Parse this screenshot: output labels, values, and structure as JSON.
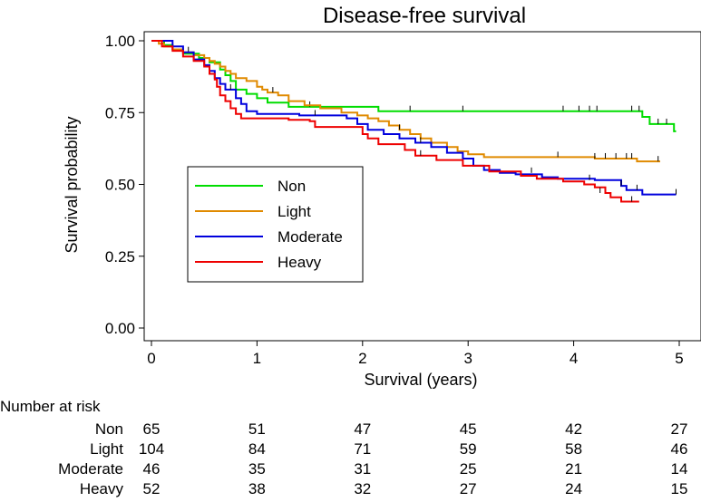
{
  "chart_data": {
    "type": "line",
    "step": true,
    "title": "Disease-free survival",
    "xlabel": "Survival (years)",
    "ylabel": "Survival probability",
    "xlim": [
      0,
      5
    ],
    "ylim": [
      0,
      1
    ],
    "x_ticks": [
      "0",
      "1",
      "2",
      "3",
      "4",
      "5"
    ],
    "y_ticks": [
      "0.00",
      "0.25",
      "0.50",
      "0.75",
      "1.00"
    ],
    "grid": false,
    "legend_placement": "center-left",
    "series": [
      {
        "name": "Non",
        "color": "#00dd00",
        "points": [
          [
            0,
            1
          ],
          [
            0.12,
            0.985
          ],
          [
            0.2,
            0.97
          ],
          [
            0.3,
            0.955
          ],
          [
            0.45,
            0.94
          ],
          [
            0.55,
            0.925
          ],
          [
            0.65,
            0.9
          ],
          [
            0.7,
            0.88
          ],
          [
            0.75,
            0.86
          ],
          [
            0.8,
            0.83
          ],
          [
            0.9,
            0.815
          ],
          [
            1.0,
            0.8
          ],
          [
            1.1,
            0.785
          ],
          [
            1.3,
            0.77
          ],
          [
            2.15,
            0.755
          ],
          [
            4.65,
            0.735
          ],
          [
            4.72,
            0.71
          ],
          [
            4.95,
            0.685
          ],
          [
            4.97,
            0.685
          ]
        ],
        "censored": [
          [
            1.5,
            0.77
          ],
          [
            2.45,
            0.755
          ],
          [
            2.95,
            0.755
          ],
          [
            3.9,
            0.755
          ],
          [
            4.05,
            0.755
          ],
          [
            4.15,
            0.755
          ],
          [
            4.22,
            0.755
          ],
          [
            4.55,
            0.755
          ],
          [
            4.62,
            0.755
          ],
          [
            4.8,
            0.71
          ],
          [
            4.88,
            0.71
          ]
        ]
      },
      {
        "name": "Light",
        "color": "#e08a00",
        "points": [
          [
            0,
            1
          ],
          [
            0.07,
            0.99
          ],
          [
            0.12,
            0.98
          ],
          [
            0.2,
            0.97
          ],
          [
            0.3,
            0.96
          ],
          [
            0.4,
            0.95
          ],
          [
            0.5,
            0.94
          ],
          [
            0.55,
            0.93
          ],
          [
            0.6,
            0.92
          ],
          [
            0.65,
            0.91
          ],
          [
            0.7,
            0.895
          ],
          [
            0.75,
            0.885
          ],
          [
            0.8,
            0.87
          ],
          [
            0.9,
            0.86
          ],
          [
            1.0,
            0.84
          ],
          [
            1.05,
            0.83
          ],
          [
            1.1,
            0.82
          ],
          [
            1.2,
            0.81
          ],
          [
            1.3,
            0.79
          ],
          [
            1.45,
            0.775
          ],
          [
            1.6,
            0.765
          ],
          [
            1.8,
            0.75
          ],
          [
            1.95,
            0.74
          ],
          [
            2.05,
            0.73
          ],
          [
            2.15,
            0.72
          ],
          [
            2.25,
            0.705
          ],
          [
            2.35,
            0.69
          ],
          [
            2.45,
            0.675
          ],
          [
            2.55,
            0.66
          ],
          [
            2.65,
            0.645
          ],
          [
            2.8,
            0.63
          ],
          [
            2.9,
            0.615
          ],
          [
            3.0,
            0.605
          ],
          [
            3.15,
            0.595
          ],
          [
            4.2,
            0.59
          ],
          [
            4.6,
            0.58
          ],
          [
            4.82,
            0.58
          ]
        ],
        "censored": [
          [
            0.35,
            0.96
          ],
          [
            1.15,
            0.82
          ],
          [
            2.35,
            0.69
          ],
          [
            3.85,
            0.595
          ],
          [
            4.2,
            0.59
          ],
          [
            4.3,
            0.59
          ],
          [
            4.4,
            0.59
          ],
          [
            4.5,
            0.59
          ],
          [
            4.55,
            0.59
          ],
          [
            4.8,
            0.58
          ]
        ]
      },
      {
        "name": "Moderate",
        "color": "#0000dd",
        "points": [
          [
            0,
            1
          ],
          [
            0.2,
            0.98
          ],
          [
            0.3,
            0.96
          ],
          [
            0.4,
            0.935
          ],
          [
            0.5,
            0.915
          ],
          [
            0.55,
            0.895
          ],
          [
            0.6,
            0.87
          ],
          [
            0.65,
            0.85
          ],
          [
            0.7,
            0.83
          ],
          [
            0.8,
            0.8
          ],
          [
            0.85,
            0.78
          ],
          [
            0.9,
            0.755
          ],
          [
            1.0,
            0.745
          ],
          [
            1.4,
            0.74
          ],
          [
            1.85,
            0.73
          ],
          [
            1.95,
            0.71
          ],
          [
            2.05,
            0.69
          ],
          [
            2.2,
            0.675
          ],
          [
            2.35,
            0.66
          ],
          [
            2.5,
            0.645
          ],
          [
            2.65,
            0.63
          ],
          [
            2.8,
            0.61
          ],
          [
            2.95,
            0.59
          ],
          [
            3.05,
            0.565
          ],
          [
            3.15,
            0.55
          ],
          [
            3.3,
            0.54
          ],
          [
            3.45,
            0.535
          ],
          [
            3.7,
            0.525
          ],
          [
            3.85,
            0.52
          ],
          [
            4.2,
            0.515
          ],
          [
            4.45,
            0.495
          ],
          [
            4.5,
            0.48
          ],
          [
            4.65,
            0.465
          ],
          [
            4.97,
            0.465
          ]
        ],
        "censored": [
          [
            0.75,
            0.83
          ],
          [
            1.55,
            0.74
          ],
          [
            2.55,
            0.645
          ],
          [
            3.6,
            0.54
          ],
          [
            4.15,
            0.515
          ],
          [
            4.45,
            0.495
          ],
          [
            4.6,
            0.48
          ],
          [
            4.97,
            0.465
          ]
        ]
      },
      {
        "name": "Heavy",
        "color": "#ee0000",
        "points": [
          [
            0,
            1
          ],
          [
            0.1,
            0.98
          ],
          [
            0.2,
            0.965
          ],
          [
            0.3,
            0.945
          ],
          [
            0.4,
            0.93
          ],
          [
            0.5,
            0.91
          ],
          [
            0.55,
            0.885
          ],
          [
            0.6,
            0.865
          ],
          [
            0.62,
            0.84
          ],
          [
            0.65,
            0.81
          ],
          [
            0.7,
            0.79
          ],
          [
            0.75,
            0.765
          ],
          [
            0.8,
            0.745
          ],
          [
            0.85,
            0.73
          ],
          [
            1.3,
            0.725
          ],
          [
            1.5,
            0.72
          ],
          [
            1.55,
            0.7
          ],
          [
            2.0,
            0.675
          ],
          [
            2.05,
            0.66
          ],
          [
            2.15,
            0.64
          ],
          [
            2.4,
            0.62
          ],
          [
            2.5,
            0.6
          ],
          [
            2.7,
            0.585
          ],
          [
            2.95,
            0.565
          ],
          [
            3.2,
            0.545
          ],
          [
            3.5,
            0.53
          ],
          [
            3.65,
            0.52
          ],
          [
            3.9,
            0.51
          ],
          [
            4.1,
            0.5
          ],
          [
            4.2,
            0.49
          ],
          [
            4.3,
            0.47
          ],
          [
            4.35,
            0.455
          ],
          [
            4.45,
            0.44
          ],
          [
            4.62,
            0.44
          ]
        ],
        "censored": [
          [
            2.55,
            0.6
          ],
          [
            4.25,
            0.47
          ],
          [
            4.55,
            0.44
          ]
        ]
      }
    ]
  },
  "risk_table": {
    "title": "Number at risk",
    "times": [
      0,
      1,
      2,
      3,
      4,
      5
    ],
    "rows": [
      {
        "label": "Non",
        "values": [
          "65",
          "51",
          "47",
          "45",
          "42",
          "27"
        ]
      },
      {
        "label": "Light",
        "values": [
          "104",
          "84",
          "71",
          "59",
          "58",
          "46"
        ]
      },
      {
        "label": "Moderate",
        "values": [
          "46",
          "35",
          "31",
          "25",
          "21",
          "14"
        ]
      },
      {
        "label": "Heavy",
        "values": [
          "52",
          "38",
          "32",
          "27",
          "24",
          "15"
        ]
      }
    ]
  }
}
